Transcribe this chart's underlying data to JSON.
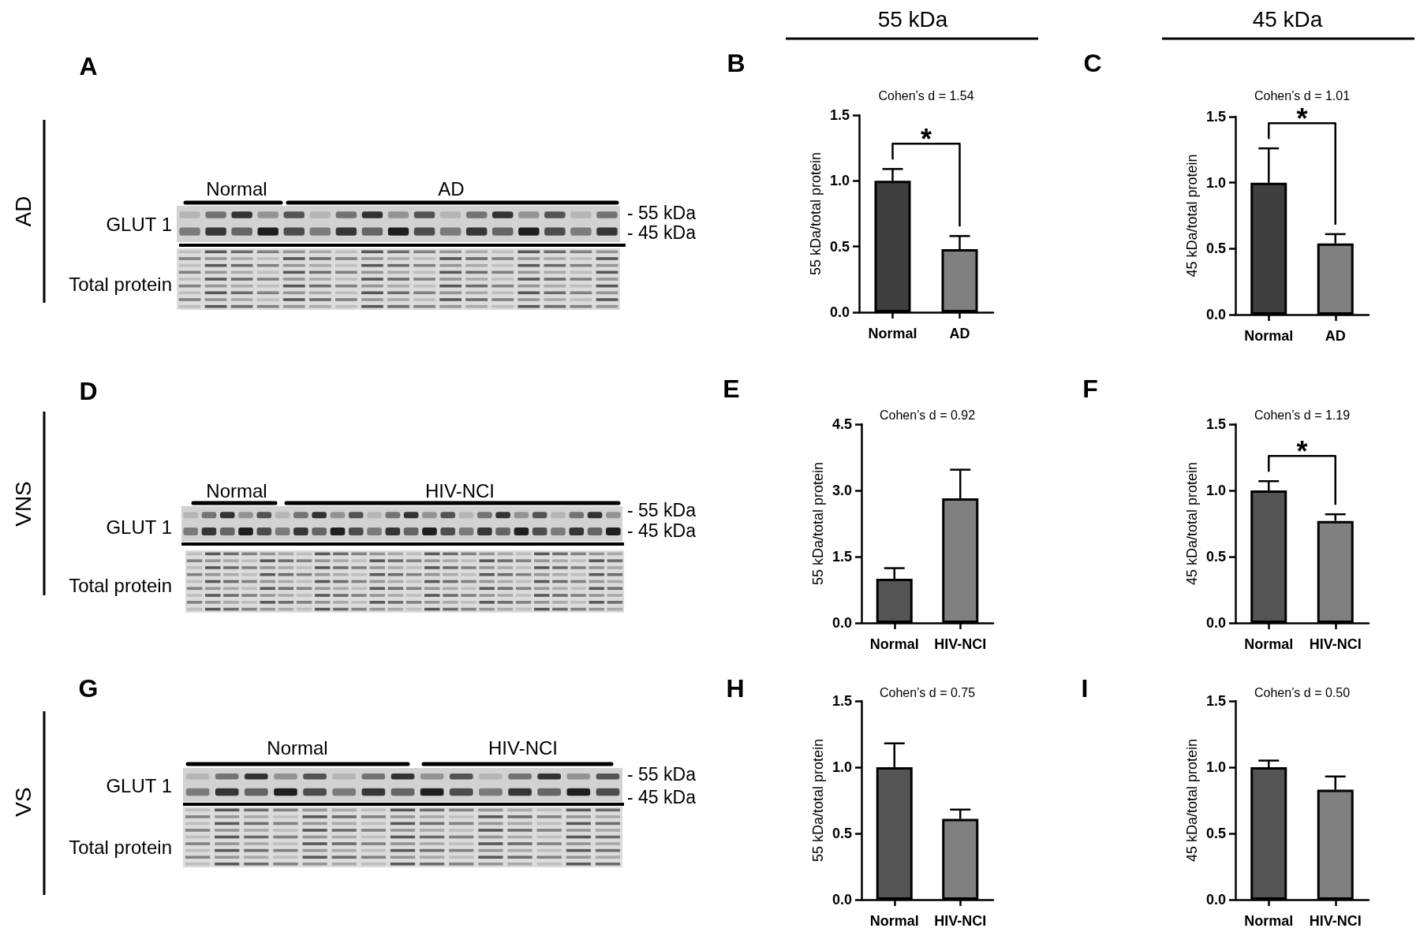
{
  "chart_data": [
    {
      "type": "other",
      "annotations": [
        "A",
        "AD",
        "Normal",
        "AD",
        "GLUT 1",
        "- 55 kDa",
        "- 45 kDa",
        "Total protein"
      ]
    },
    {
      "type": "bar",
      "title": "Cohen’s d = 1.54",
      "ylabel": "55 kDa/total protein",
      "categories": [
        "Normal",
        "AD"
      ],
      "values": [
        1.0,
        0.48
      ],
      "colors": [
        "#3f3f3f",
        "#808080"
      ],
      "errors": [
        [
          1.0,
          1.09
        ],
        [
          0.48,
          0.58
        ]
      ],
      "ylim": [
        0,
        1.5
      ],
      "yticks": [
        {
          "value": 0,
          "label": "0.0"
        },
        {
          "value": 0.5,
          "label": "0.5"
        },
        {
          "value": 1,
          "label": "1.0"
        },
        {
          "value": 1.5,
          "label": "1.5"
        }
      ],
      "annotations": [
        "B",
        "55 kDa",
        "*"
      ]
    },
    {
      "type": "bar",
      "title": "Cohen’s d = 1.01",
      "ylabel": "45 kDa/total protein",
      "categories": [
        "Normal",
        "AD"
      ],
      "values": [
        1.0,
        0.54
      ],
      "colors": [
        "#3f3f3f",
        "#808080"
      ],
      "errors": [
        [
          1.0,
          1.26
        ],
        [
          0.54,
          0.61
        ]
      ],
      "ylim": [
        0,
        1.5
      ],
      "yticks": [
        {
          "value": 0,
          "label": "0.0"
        },
        {
          "value": 0.5,
          "label": "0.5"
        },
        {
          "value": 1,
          "label": "1.0"
        },
        {
          "value": 1.5,
          "label": "1.5"
        }
      ],
      "annotations": [
        "C",
        "45 kDa",
        "*"
      ]
    },
    {
      "type": "other",
      "annotations": [
        "D",
        "VNS",
        "Normal",
        "HIV-NCI",
        "GLUT 1",
        "- 55 kDa",
        "- 45 kDa",
        "Total protein"
      ]
    },
    {
      "type": "bar",
      "title": "Cohen’s d = 0.92",
      "ylabel": "55 kDa/total protein",
      "categories": [
        "Normal",
        "HIV-NCI"
      ],
      "values": [
        1.0,
        2.82
      ],
      "colors": [
        "#545454",
        "#808080"
      ],
      "errors": [
        [
          1.0,
          1.24
        ],
        [
          2.82,
          3.47
        ]
      ],
      "ylim": [
        0,
        4.5
      ],
      "yticks": [
        {
          "value": 0,
          "label": "0.0"
        },
        {
          "value": 1.5,
          "label": "1.5"
        },
        {
          "value": 3,
          "label": "3.0"
        },
        {
          "value": 4.5,
          "label": "4.5"
        }
      ],
      "annotations": [
        "E"
      ]
    },
    {
      "type": "bar",
      "title": "Cohen’s d = 1.19",
      "ylabel": "45 kDa/total protein",
      "categories": [
        "Normal",
        "HIV-NCI"
      ],
      "values": [
        1.0,
        0.77
      ],
      "colors": [
        "#545454",
        "#808080"
      ],
      "errors": [
        [
          1.0,
          1.07
        ],
        [
          0.77,
          0.82
        ]
      ],
      "ylim": [
        0,
        1.5
      ],
      "yticks": [
        {
          "value": 0,
          "label": "0.0"
        },
        {
          "value": 0.5,
          "label": "0.5"
        },
        {
          "value": 1,
          "label": "1.0"
        },
        {
          "value": 1.5,
          "label": "1.5"
        }
      ],
      "annotations": [
        "F",
        "*"
      ]
    },
    {
      "type": "other",
      "annotations": [
        "G",
        "VS",
        "Normal",
        "HIV-NCI",
        "GLUT 1",
        "- 55 kDa",
        "- 45 kDa",
        "Total protein"
      ]
    },
    {
      "type": "bar",
      "title": "Cohen’s d = 0.75",
      "ylabel": "55 kDa/total protein",
      "categories": [
        "Normal",
        "HIV-NCI"
      ],
      "values": [
        1.0,
        0.61
      ],
      "colors": [
        "#545454",
        "#808080"
      ],
      "errors": [
        [
          1.0,
          1.18
        ],
        [
          0.61,
          0.68
        ]
      ],
      "ylim": [
        0,
        1.5
      ],
      "yticks": [
        {
          "value": 0,
          "label": "0.0"
        },
        {
          "value": 0.5,
          "label": "0.5"
        },
        {
          "value": 1,
          "label": "1.0"
        },
        {
          "value": 1.5,
          "label": "1.5"
        }
      ],
      "annotations": [
        "H"
      ]
    },
    {
      "type": "bar",
      "title": "Cohen’s d = 0.50",
      "ylabel": "45 kDa/total protein",
      "categories": [
        "Normal",
        "HIV-NCI"
      ],
      "values": [
        1.0,
        0.83
      ],
      "colors": [
        "#545454",
        "#808080"
      ],
      "errors": [
        [
          1.0,
          1.05
        ],
        [
          0.83,
          0.93
        ]
      ],
      "ylim": [
        0,
        1.5
      ],
      "yticks": [
        {
          "value": 0,
          "label": "0.0"
        },
        {
          "value": 0.5,
          "label": "0.5"
        },
        {
          "value": 1,
          "label": "1.0"
        },
        {
          "value": 1.5,
          "label": "1.5"
        }
      ],
      "annotations": [
        "I"
      ]
    }
  ]
}
